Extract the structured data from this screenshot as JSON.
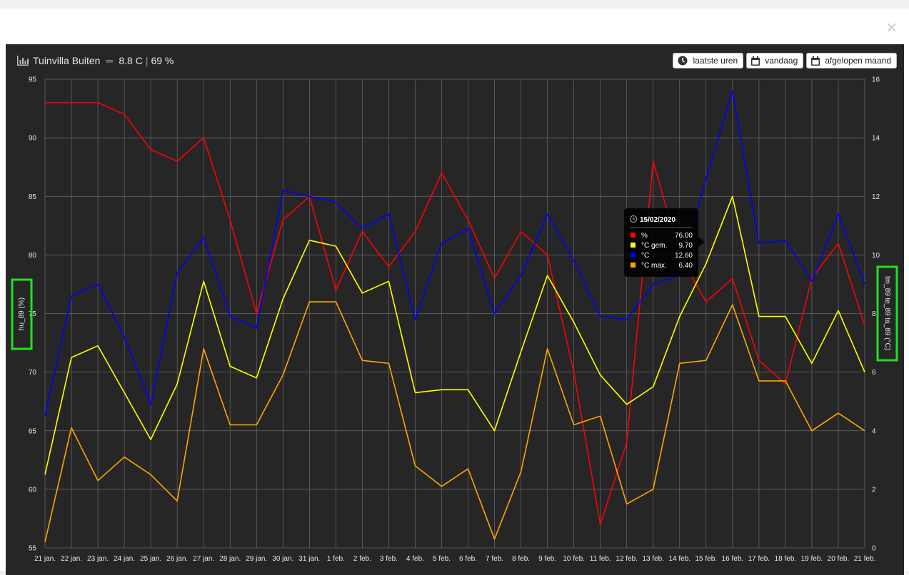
{
  "header": {
    "title": "Tuinvilla Buiten",
    "temperature": "8.8 C",
    "humidity": "69 %"
  },
  "buttons": [
    {
      "label": "laatste uren",
      "icon": "clock-icon"
    },
    {
      "label": "vandaag",
      "icon": "calendar-icon"
    },
    {
      "label": "afgelopen maand",
      "icon": "calendar-icon"
    }
  ],
  "close_label": "×",
  "tooltip": {
    "date": "15/02/2020",
    "rows": [
      {
        "label": "%",
        "value": "76.00",
        "color": "#ff0000"
      },
      {
        "label": "°C gem.",
        "value": "9.70",
        "color": "#ffff00"
      },
      {
        "label": "°C",
        "value": "12.60",
        "color": "#0000ff"
      },
      {
        "label": "°C max.",
        "value": "6.40",
        "color": "#ffa500"
      }
    ]
  },
  "chart_data": {
    "type": "line",
    "grid": true,
    "categories": [
      "21 jan.",
      "22 jan.",
      "23 jan.",
      "24 jan.",
      "25 jan.",
      "26 jan.",
      "27 jan.",
      "28 jan.",
      "29 jan.",
      "30 jan.",
      "31 jan.",
      "1 feb.",
      "2 feb.",
      "3 feb.",
      "4 feb.",
      "5 feb.",
      "6 feb.",
      "7 feb.",
      "8 feb.",
      "9 feb.",
      "10 feb.",
      "11 feb.",
      "12 feb.",
      "13 feb.",
      "14 feb.",
      "15 feb.",
      "16 feb.",
      "17 feb.",
      "18 feb.",
      "19 feb.",
      "20 feb.",
      "21 feb."
    ],
    "y_left": {
      "label": "hu_89 (%)",
      "ticks": [
        55,
        60,
        65,
        70,
        75,
        80,
        85,
        90,
        95
      ],
      "range": [
        55,
        95
      ]
    },
    "y_right": {
      "label": "tm_89 te_89 ta_89 (°C)",
      "ticks": [
        0,
        2,
        4,
        6,
        8,
        10,
        12,
        14,
        16
      ],
      "range": [
        0,
        16
      ]
    },
    "series": [
      {
        "name": "%",
        "axis": "left",
        "color": "#ff0000",
        "values": [
          93,
          93,
          93,
          92,
          89,
          88,
          90,
          83,
          75,
          83,
          85,
          77,
          82,
          79,
          82,
          87,
          83,
          78,
          82,
          80,
          70,
          57,
          64,
          88,
          80,
          76,
          78,
          71,
          69,
          78,
          81,
          74
        ]
      },
      {
        "name": "°C",
        "axis": "right",
        "color": "#0000ff",
        "values": [
          4.5,
          8.6,
          9.0,
          7.2,
          4.9,
          9.4,
          10.6,
          7.9,
          7.5,
          12.2,
          12.0,
          11.8,
          10.9,
          11.4,
          7.8,
          10.4,
          10.9,
          8.0,
          9.3,
          11.4,
          9.8,
          7.9,
          7.8,
          9.0,
          9.3,
          12.6,
          15.6,
          10.4,
          10.5,
          9.1,
          11.4,
          9.0
        ]
      },
      {
        "name": "°C gem.",
        "axis": "right",
        "color": "#ffff00",
        "values": [
          2.5,
          6.5,
          6.9,
          5.3,
          3.7,
          5.6,
          9.1,
          6.2,
          5.8,
          8.5,
          10.5,
          10.3,
          8.7,
          9.1,
          5.3,
          5.4,
          5.4,
          4.0,
          6.7,
          9.3,
          7.7,
          5.9,
          4.9,
          5.5,
          7.9,
          9.7,
          12.0,
          7.9,
          7.9,
          6.3,
          8.1,
          6.0
        ]
      },
      {
        "name": "°C max.",
        "axis": "right",
        "color": "#ffa500",
        "values": [
          0.2,
          4.1,
          2.3,
          3.1,
          2.5,
          1.6,
          6.8,
          4.2,
          4.2,
          5.9,
          8.4,
          8.4,
          6.4,
          6.3,
          2.8,
          2.1,
          2.7,
          0.3,
          2.6,
          6.8,
          4.2,
          4.5,
          1.5,
          2.0,
          6.3,
          6.4,
          8.3,
          5.7,
          5.7,
          4.0,
          4.6,
          4.0
        ]
      }
    ]
  }
}
